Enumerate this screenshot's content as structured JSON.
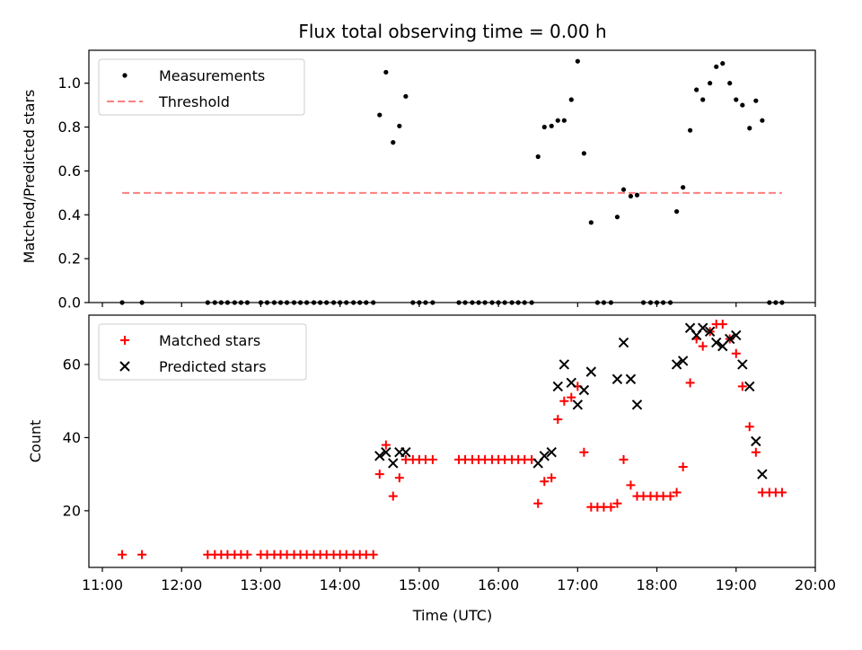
{
  "chart_data": {
    "title": "Flux total observing time = 0.00 h",
    "xlabel": "Time (UTC)",
    "x_unit": "hours UTC",
    "xlim": [
      10.83,
      20.0
    ],
    "x_ticks": [
      11,
      12,
      13,
      14,
      15,
      16,
      17,
      18,
      19,
      20
    ],
    "x_tick_labels": [
      "11:00",
      "12:00",
      "13:00",
      "14:00",
      "15:00",
      "16:00",
      "17:00",
      "18:00",
      "19:00",
      "20:00"
    ],
    "panels": [
      {
        "type": "scatter",
        "ylabel": "Matched/Predicted stars",
        "ylim": [
          0,
          1.15
        ],
        "y_ticks": [
          0.0,
          0.2,
          0.4,
          0.6,
          0.8,
          1.0
        ],
        "y_tick_labels": [
          "0.0",
          "0.2",
          "0.4",
          "0.6",
          "0.8",
          "1.0"
        ],
        "legend_position": "top-left",
        "series": [
          {
            "name": "Measurements",
            "kind": "scatter-dot",
            "color": "#000000",
            "points": [
              [
                11.25,
                0
              ],
              [
                11.5,
                0
              ],
              [
                12.33,
                0
              ],
              [
                12.42,
                0
              ],
              [
                12.5,
                0
              ],
              [
                12.58,
                0
              ],
              [
                12.67,
                0
              ],
              [
                12.75,
                0
              ],
              [
                12.83,
                0
              ],
              [
                13.0,
                0
              ],
              [
                13.08,
                0
              ],
              [
                13.17,
                0
              ],
              [
                13.25,
                0
              ],
              [
                13.33,
                0
              ],
              [
                13.42,
                0
              ],
              [
                13.5,
                0
              ],
              [
                13.58,
                0
              ],
              [
                13.67,
                0
              ],
              [
                13.75,
                0
              ],
              [
                13.83,
                0
              ],
              [
                13.92,
                0
              ],
              [
                14.0,
                0
              ],
              [
                14.08,
                0
              ],
              [
                14.17,
                0
              ],
              [
                14.25,
                0
              ],
              [
                14.33,
                0
              ],
              [
                14.42,
                0
              ],
              [
                14.5,
                0.855
              ],
              [
                14.58,
                1.05
              ],
              [
                14.67,
                0.73
              ],
              [
                14.75,
                0.805
              ],
              [
                14.83,
                0.94
              ],
              [
                14.92,
                0
              ],
              [
                15.0,
                0
              ],
              [
                15.08,
                0
              ],
              [
                15.17,
                0
              ],
              [
                15.5,
                0
              ],
              [
                15.58,
                0
              ],
              [
                15.67,
                0
              ],
              [
                15.75,
                0
              ],
              [
                15.83,
                0
              ],
              [
                15.92,
                0
              ],
              [
                16.0,
                0
              ],
              [
                16.08,
                0
              ],
              [
                16.17,
                0
              ],
              [
                16.25,
                0
              ],
              [
                16.33,
                0
              ],
              [
                16.42,
                0
              ],
              [
                16.5,
                0.665
              ],
              [
                16.58,
                0.8
              ],
              [
                16.67,
                0.805
              ],
              [
                16.75,
                0.83
              ],
              [
                16.83,
                0.83
              ],
              [
                16.92,
                0.925
              ],
              [
                17.0,
                1.1
              ],
              [
                17.08,
                0.68
              ],
              [
                17.17,
                0.365
              ],
              [
                17.25,
                0
              ],
              [
                17.33,
                0
              ],
              [
                17.42,
                0
              ],
              [
                17.5,
                0.39
              ],
              [
                17.58,
                0.515
              ],
              [
                17.67,
                0.485
              ],
              [
                17.75,
                0.49
              ],
              [
                17.83,
                0
              ],
              [
                17.92,
                0
              ],
              [
                18.0,
                0
              ],
              [
                18.08,
                0
              ],
              [
                18.17,
                0
              ],
              [
                18.25,
                0.415
              ],
              [
                18.33,
                0.525
              ],
              [
                18.42,
                0.785
              ],
              [
                18.5,
                0.97
              ],
              [
                18.58,
                0.925
              ],
              [
                18.67,
                1.0
              ],
              [
                18.75,
                1.075
              ],
              [
                18.83,
                1.09
              ],
              [
                18.92,
                1.0
              ],
              [
                19.0,
                0.925
              ],
              [
                19.08,
                0.9
              ],
              [
                19.17,
                0.795
              ],
              [
                19.25,
                0.92
              ],
              [
                19.33,
                0.83
              ],
              [
                19.42,
                0
              ],
              [
                19.5,
                0
              ],
              [
                19.58,
                0
              ]
            ]
          },
          {
            "name": "Threshold",
            "kind": "dashed-line",
            "color": "#ff7f7f",
            "x": [
              11.25,
              19.58
            ],
            "y": [
              0.5,
              0.5
            ]
          }
        ]
      },
      {
        "type": "scatter",
        "ylabel": "Count",
        "ylim": [
          4.5,
          73.5
        ],
        "y_ticks": [
          20,
          40,
          60
        ],
        "y_tick_labels": [
          "20",
          "40",
          "60"
        ],
        "legend_position": "top-left",
        "series": [
          {
            "name": "Matched stars",
            "kind": "plus",
            "color": "#ff0000",
            "points": [
              [
                11.25,
                8
              ],
              [
                11.5,
                8
              ],
              [
                12.33,
                8
              ],
              [
                12.42,
                8
              ],
              [
                12.5,
                8
              ],
              [
                12.58,
                8
              ],
              [
                12.67,
                8
              ],
              [
                12.75,
                8
              ],
              [
                12.83,
                8
              ],
              [
                13.0,
                8
              ],
              [
                13.08,
                8
              ],
              [
                13.17,
                8
              ],
              [
                13.25,
                8
              ],
              [
                13.33,
                8
              ],
              [
                13.42,
                8
              ],
              [
                13.5,
                8
              ],
              [
                13.58,
                8
              ],
              [
                13.67,
                8
              ],
              [
                13.75,
                8
              ],
              [
                13.83,
                8
              ],
              [
                13.92,
                8
              ],
              [
                14.0,
                8
              ],
              [
                14.08,
                8
              ],
              [
                14.17,
                8
              ],
              [
                14.25,
                8
              ],
              [
                14.33,
                8
              ],
              [
                14.42,
                8
              ],
              [
                14.5,
                30
              ],
              [
                14.58,
                38
              ],
              [
                14.67,
                24
              ],
              [
                14.75,
                29
              ],
              [
                14.83,
                34
              ],
              [
                14.92,
                34
              ],
              [
                15.0,
                34
              ],
              [
                15.08,
                34
              ],
              [
                15.17,
                34
              ],
              [
                15.5,
                34
              ],
              [
                15.58,
                34
              ],
              [
                15.67,
                34
              ],
              [
                15.75,
                34
              ],
              [
                15.83,
                34
              ],
              [
                15.92,
                34
              ],
              [
                16.0,
                34
              ],
              [
                16.08,
                34
              ],
              [
                16.17,
                34
              ],
              [
                16.25,
                34
              ],
              [
                16.33,
                34
              ],
              [
                16.42,
                34
              ],
              [
                16.5,
                22
              ],
              [
                16.58,
                28
              ],
              [
                16.67,
                29
              ],
              [
                16.75,
                45
              ],
              [
                16.83,
                50
              ],
              [
                16.92,
                51
              ],
              [
                17.0,
                54
              ],
              [
                17.08,
                36
              ],
              [
                17.17,
                21
              ],
              [
                17.25,
                21
              ],
              [
                17.33,
                21
              ],
              [
                17.42,
                21
              ],
              [
                17.5,
                22
              ],
              [
                17.58,
                34
              ],
              [
                17.67,
                27
              ],
              [
                17.75,
                24
              ],
              [
                17.83,
                24
              ],
              [
                17.92,
                24
              ],
              [
                18.0,
                24
              ],
              [
                18.08,
                24
              ],
              [
                18.17,
                24
              ],
              [
                18.25,
                25
              ],
              [
                18.33,
                32
              ],
              [
                18.42,
                55
              ],
              [
                18.5,
                67
              ],
              [
                18.58,
                65
              ],
              [
                18.67,
                69
              ],
              [
                18.75,
                71
              ],
              [
                18.83,
                71
              ],
              [
                18.92,
                67
              ],
              [
                19.0,
                63
              ],
              [
                19.08,
                54
              ],
              [
                19.17,
                43
              ],
              [
                19.25,
                36
              ],
              [
                19.33,
                25
              ],
              [
                19.42,
                25
              ],
              [
                19.5,
                25
              ],
              [
                19.58,
                25
              ]
            ]
          },
          {
            "name": "Predicted stars",
            "kind": "x",
            "color": "#000000",
            "points": [
              [
                14.5,
                35
              ],
              [
                14.58,
                36
              ],
              [
                14.67,
                33
              ],
              [
                14.75,
                36
              ],
              [
                14.83,
                36
              ],
              [
                16.5,
                33
              ],
              [
                16.58,
                35
              ],
              [
                16.67,
                36
              ],
              [
                16.75,
                54
              ],
              [
                16.83,
                60
              ],
              [
                16.92,
                55
              ],
              [
                17.0,
                49
              ],
              [
                17.08,
                53
              ],
              [
                17.17,
                58
              ],
              [
                17.5,
                56
              ],
              [
                17.58,
                66
              ],
              [
                17.67,
                56
              ],
              [
                17.75,
                49
              ],
              [
                18.25,
                60
              ],
              [
                18.33,
                61
              ],
              [
                18.42,
                70
              ],
              [
                18.5,
                68
              ],
              [
                18.58,
                70
              ],
              [
                18.67,
                69
              ],
              [
                18.75,
                66
              ],
              [
                18.83,
                65
              ],
              [
                18.92,
                67
              ],
              [
                19.0,
                68
              ],
              [
                19.08,
                60
              ],
              [
                19.17,
                54
              ],
              [
                19.25,
                39
              ],
              [
                19.33,
                30
              ]
            ]
          }
        ]
      }
    ]
  }
}
